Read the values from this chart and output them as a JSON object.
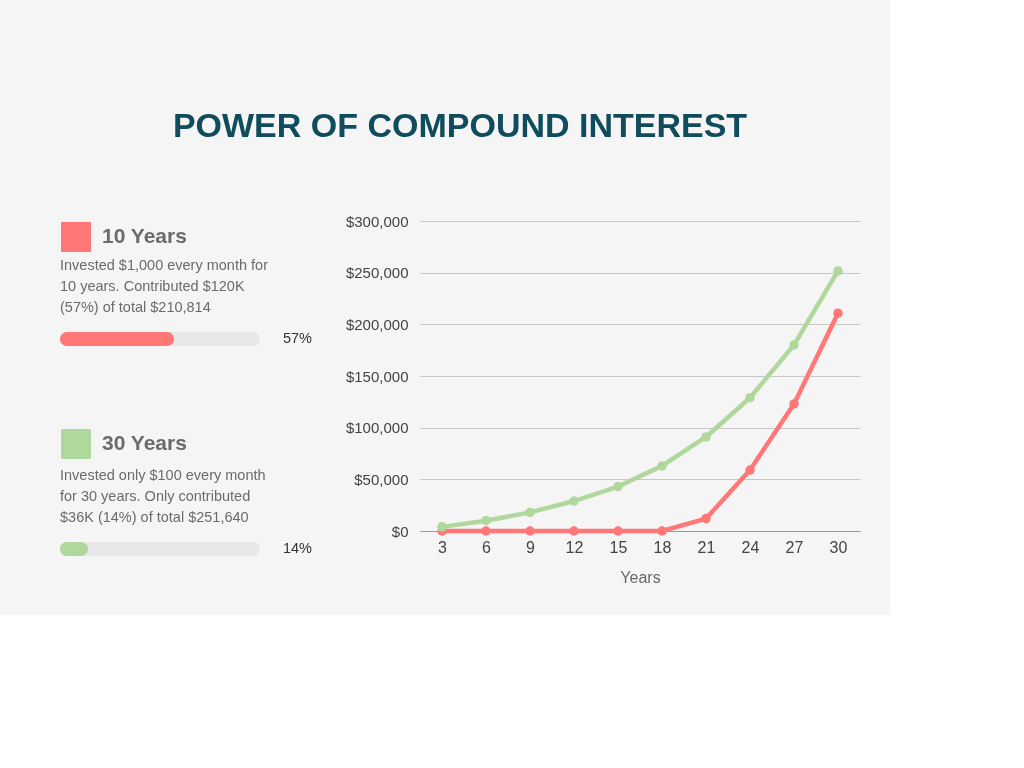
{
  "chart_data": [
    {
      "type": "bar",
      "orientation": "horizontal",
      "categories": [
        null,
        null
      ],
      "values": [
        57,
        14
      ],
      "colors": [
        "#ff7777",
        "#b0d89c"
      ],
      "value_labels": [
        "57%",
        "14%"
      ],
      "xlim": [
        0,
        100
      ],
      "tick_labels": false,
      "annotations": [
        "Invested $1,000 every month for 10 years. Contributed $120K (57%) of total $210,814",
        "Invested only $100 every month for 30 years. Only contributed $36K (14%) of total $251,640"
      ]
    },
    {
      "type": "line",
      "title": "POWER OF COMPOUND INTEREST",
      "xlabel": "Years",
      "categories": [
        "3",
        "6",
        "9",
        "12",
        "15",
        "18",
        "21",
        "24",
        "27",
        "30"
      ],
      "series": [
        {
          "name": "10 Years",
          "color": "#ff7777",
          "values": [
            0,
            0,
            0,
            0,
            0,
            0,
            12000,
            59000,
            123000,
            210814
          ]
        },
        {
          "name": "30 Years",
          "color": "#b0d89c",
          "values": [
            4000,
            10000,
            18000,
            29000,
            43000,
            63000,
            91000,
            129000,
            180000,
            251640
          ]
        }
      ],
      "ylim": [
        0,
        300000
      ],
      "yticks": [
        {
          "value": 0,
          "label": "$0"
        },
        {
          "value": 50000,
          "label": "$50,000"
        },
        {
          "value": 100000,
          "label": "$100,000"
        },
        {
          "value": 150000,
          "label": "$150,000"
        },
        {
          "value": 200000,
          "label": "$200,000"
        },
        {
          "value": 250000,
          "label": "$250,000"
        },
        {
          "value": 300000,
          "label": "$300,000"
        }
      ],
      "grid": "y",
      "legend": "left",
      "marker": "circle",
      "line_style": "solid"
    }
  ]
}
